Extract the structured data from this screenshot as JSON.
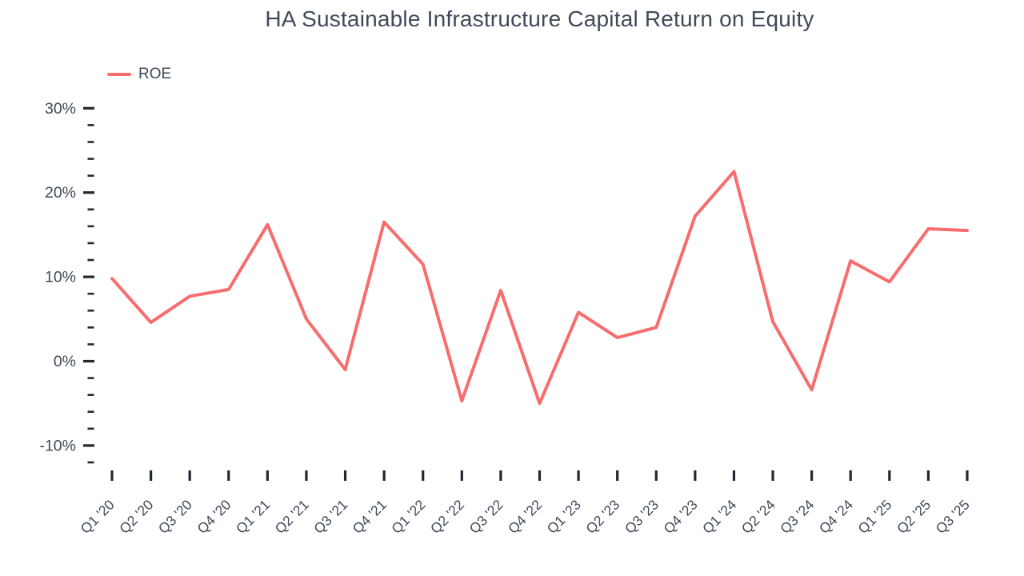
{
  "chart_data": {
    "type": "line",
    "title": "HA Sustainable Infrastructure Capital Return on Equity",
    "legend_label": "ROE",
    "legend_position": "top-left",
    "grid": false,
    "categories": [
      "Q1 '20",
      "Q2 '20",
      "Q3 '20",
      "Q4 '20",
      "Q1 '21",
      "Q2 '21",
      "Q3 '21",
      "Q4 '21",
      "Q1 '22",
      "Q2 '22",
      "Q3 '22",
      "Q4 '22",
      "Q1 '23",
      "Q2 '23",
      "Q3 '23",
      "Q4 '23",
      "Q1 '24",
      "Q2 '24",
      "Q3 '24",
      "Q4 '24",
      "Q1 '25",
      "Q2 '25",
      "Q3 '25"
    ],
    "series": [
      {
        "name": "ROE",
        "values": [
          9.8,
          4.6,
          7.7,
          8.5,
          16.2,
          5.0,
          -1.0,
          16.5,
          11.5,
          -4.7,
          8.4,
          -5.0,
          5.8,
          2.8,
          4.0,
          17.2,
          22.5,
          4.7,
          -3.4,
          11.9,
          9.4,
          15.7,
          15.5
        ]
      }
    ],
    "xlabel": "",
    "ylabel": "",
    "y_axis": {
      "major_ticks_percent": [
        30,
        20,
        10,
        0,
        -10
      ],
      "minor_step": 2,
      "min": -12,
      "max": 30,
      "tick_suffix": "%"
    }
  },
  "colors": {
    "accent": "#f76d6d",
    "text": "#3f4a59",
    "tick": "#23272e",
    "background": "#ffffff"
  }
}
